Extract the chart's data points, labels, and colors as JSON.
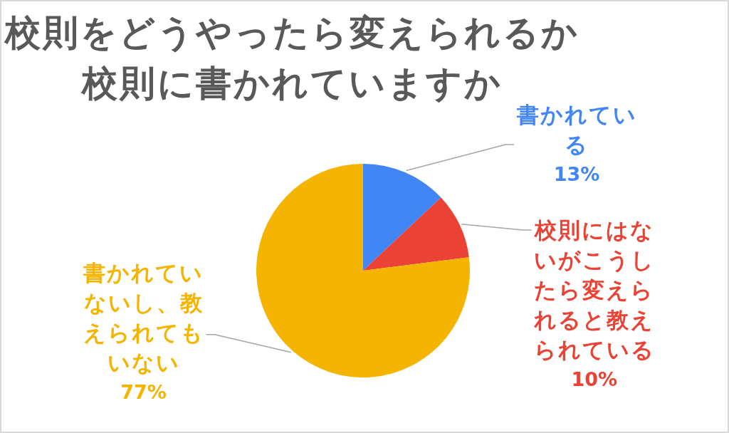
{
  "chart_data": {
    "type": "pie",
    "title": "校則をどうやったら変えられるか",
    "subtitle": "校則に書かれていますか",
    "categories": [
      "書かれている",
      "校則にはないがこうしたら変えられると教えられている",
      "書かれていないし、教えられてもいない"
    ],
    "values": [
      13,
      10,
      77
    ],
    "colors": [
      "#4285f4",
      "#ea4335",
      "#f4b400"
    ],
    "value_labels": [
      "13%",
      "10%",
      "77%"
    ]
  }
}
